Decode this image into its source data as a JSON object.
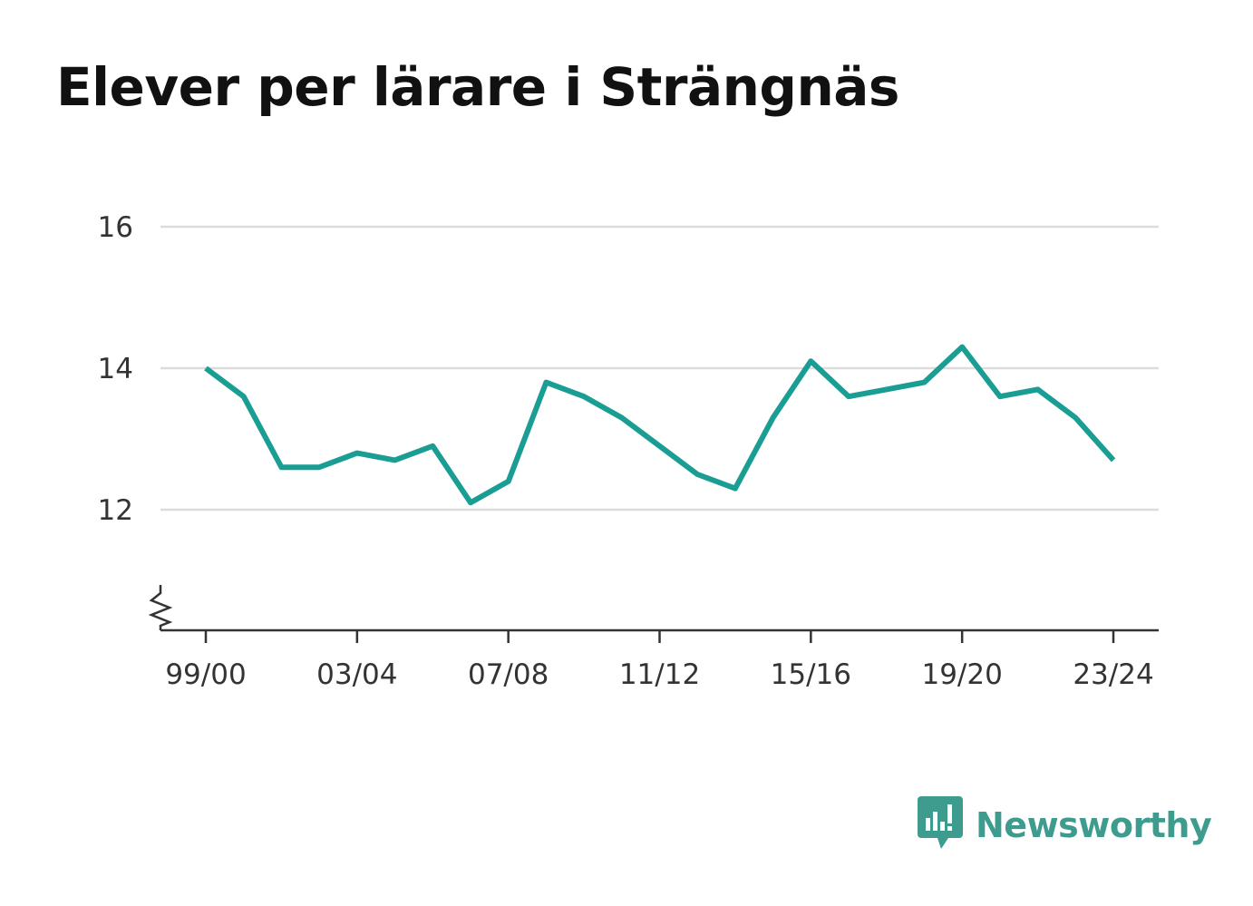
{
  "chart_data": {
    "type": "line",
    "title": "Elever per lärare i Strängnäs",
    "xlabel": "",
    "ylabel": "",
    "x": [
      "99/00",
      "00/01",
      "01/02",
      "02/03",
      "03/04",
      "04/05",
      "05/06",
      "06/07",
      "07/08",
      "08/09",
      "09/10",
      "10/11",
      "11/12",
      "12/13",
      "13/14",
      "14/15",
      "15/16",
      "16/17",
      "17/18",
      "18/19",
      "19/20",
      "20/21",
      "21/22",
      "22/23",
      "23/24"
    ],
    "x_tick_labels": [
      "99/00",
      "03/04",
      "07/08",
      "11/12",
      "15/16",
      "19/20",
      "23/24"
    ],
    "y_ticks": [
      12,
      14,
      16
    ],
    "ylim": [
      10.3,
      16
    ],
    "y_axis_break": true,
    "grid": true,
    "legend": "none",
    "series": [
      {
        "color": "#1a9e94",
        "values": [
          14.0,
          13.6,
          12.6,
          12.6,
          12.8,
          12.7,
          12.9,
          12.1,
          12.4,
          13.8,
          13.6,
          13.3,
          12.9,
          12.5,
          12.3,
          13.3,
          14.1,
          13.6,
          13.7,
          13.8,
          14.3,
          13.6,
          13.7,
          13.3,
          12.7
        ]
      }
    ]
  },
  "brand": {
    "name": "Newsworthy",
    "icon": "newsworthy-logo-icon",
    "color": "#3e9c8f"
  }
}
